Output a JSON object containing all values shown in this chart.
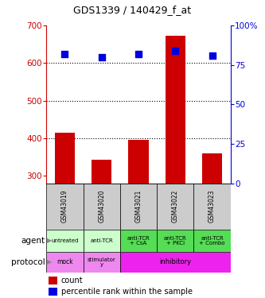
{
  "title": "GDS1339 / 140429_f_at",
  "samples": [
    "GSM43019",
    "GSM43020",
    "GSM43021",
    "GSM43022",
    "GSM43023"
  ],
  "counts": [
    415,
    343,
    395,
    672,
    360
  ],
  "percentiles": [
    82,
    80,
    82,
    84,
    81
  ],
  "ylim_left": [
    280,
    700
  ],
  "ylim_right": [
    0,
    100
  ],
  "yticks_left": [
    300,
    400,
    500,
    600,
    700
  ],
  "yticks_right": [
    0,
    25,
    50,
    75,
    100
  ],
  "bar_color": "#cc0000",
  "scatter_color": "#0000dd",
  "agent_labels": [
    "untreated",
    "anti-TCR",
    "anti-TCR\n+ CsA",
    "anti-TCR\n+ PKCi",
    "anti-TCR\n+ Combo"
  ],
  "agent_colors_list": [
    "#ccffcc",
    "#ccffcc",
    "#55dd55",
    "#55dd55",
    "#55dd55"
  ],
  "sample_bg_color": "#cccccc",
  "protocol_mock_color": "#ee88ee",
  "protocol_stim_color": "#ee88ee",
  "protocol_inhib_color": "#ee22ee",
  "legend_count_color": "#cc0000",
  "legend_percentile_color": "#0000dd",
  "gridline_color": "#000000",
  "bar_bottom": 280,
  "hgrid_lines": [
    400,
    500,
    600
  ]
}
